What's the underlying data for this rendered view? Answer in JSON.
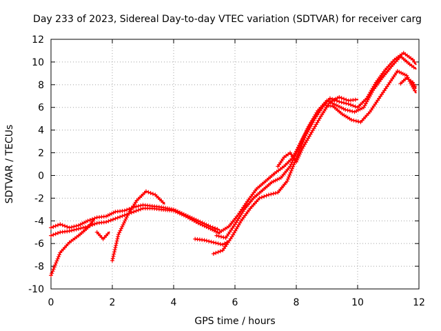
{
  "chart_data": {
    "type": "scatter",
    "title": "Day 233 of 2023, Sidereal Day-to-day VTEC variation (SDTVAR) for receiver carg",
    "xlabel": "GPS time / hours",
    "ylabel": "SDTVAR / TECUs",
    "xlim": [
      0,
      12
    ],
    "ylim": [
      -10,
      12
    ],
    "xticks": [
      "0",
      "2",
      "4",
      "6",
      "8",
      "10",
      "12"
    ],
    "yticks": [
      "-10",
      "-8",
      "-6",
      "-4",
      "-2",
      "0",
      "2",
      "4",
      "6",
      "8",
      "10",
      "12"
    ],
    "grid": true,
    "series": [
      {
        "x": [
          0.0,
          0.3,
          0.6,
          0.9,
          1.2,
          1.5,
          1.8,
          2.1,
          2.4,
          2.7,
          3.0,
          3.3,
          3.6,
          4.0,
          4.4,
          4.8,
          5.2,
          5.5
        ],
        "y": [
          -4.6,
          -4.3,
          -4.6,
          -4.4,
          -4.0,
          -3.7,
          -3.6,
          -3.2,
          -3.1,
          -2.8,
          -2.6,
          -2.7,
          -2.8,
          -3.0,
          -3.5,
          -4.0,
          -4.5,
          -4.8
        ]
      },
      {
        "x": [
          0.0,
          0.3,
          0.6,
          0.9,
          1.2,
          1.5,
          1.8,
          2.1,
          2.4,
          2.7,
          3.0,
          3.3,
          3.6,
          4.0,
          4.4,
          4.8,
          5.2,
          5.5
        ],
        "y": [
          -5.3,
          -5.0,
          -4.9,
          -4.7,
          -4.5,
          -4.2,
          -4.1,
          -3.8,
          -3.5,
          -3.2,
          -2.9,
          -2.9,
          -3.0,
          -3.1,
          -3.6,
          -4.2,
          -4.7,
          -5.1
        ]
      },
      {
        "x": [
          0.0,
          0.3,
          0.6,
          0.9,
          1.2,
          1.4
        ],
        "y": [
          -8.8,
          -6.8,
          -5.9,
          -5.3,
          -4.6,
          -3.9
        ]
      },
      {
        "x": [
          2.0,
          2.2,
          2.5,
          2.8,
          3.1,
          3.4,
          3.7
        ],
        "y": [
          -7.5,
          -5.2,
          -3.5,
          -2.2,
          -1.4,
          -1.7,
          -2.5
        ]
      },
      {
        "x": [
          1.5,
          1.7,
          1.9
        ],
        "y": [
          -5.0,
          -5.6,
          -5.0
        ]
      },
      {
        "x": [
          4.7,
          5.0,
          5.3,
          5.6,
          5.8
        ],
        "y": [
          -5.6,
          -5.7,
          -5.9,
          -6.1,
          -5.8
        ]
      },
      {
        "x": [
          5.3,
          5.6,
          5.9,
          6.2,
          6.5,
          6.8,
          7.1,
          7.4,
          7.7,
          8.0,
          8.3,
          8.6,
          8.9,
          9.2,
          9.5,
          9.8,
          10.1,
          10.4,
          10.7,
          11.0,
          11.3,
          11.6,
          11.9
        ],
        "y": [
          -6.9,
          -6.6,
          -5.4,
          -4.0,
          -2.9,
          -2.0,
          -1.7,
          -1.5,
          -0.5,
          1.5,
          3.5,
          5.0,
          6.2,
          6.1,
          5.4,
          4.9,
          4.7,
          5.6,
          6.8,
          8.0,
          9.2,
          8.8,
          7.3
        ]
      },
      {
        "x": [
          5.4,
          5.7,
          6.0,
          6.3,
          6.6,
          6.9,
          7.2,
          7.5,
          7.8,
          8.1,
          8.4,
          8.7,
          9.0,
          9.3,
          9.6,
          9.9,
          10.2,
          10.5,
          10.8,
          11.1,
          11.4,
          11.7,
          11.9
        ],
        "y": [
          -5.3,
          -5.5,
          -4.3,
          -3.0,
          -2.0,
          -1.3,
          -0.6,
          -0.2,
          0.8,
          2.6,
          4.3,
          5.7,
          6.6,
          6.2,
          5.8,
          5.6,
          6.0,
          7.5,
          8.6,
          9.6,
          10.5,
          9.8,
          9.4
        ]
      },
      {
        "x": [
          5.5,
          5.8,
          6.1,
          6.4,
          6.7,
          7.0,
          7.3,
          7.6,
          7.9,
          8.2,
          8.5,
          8.8,
          9.1,
          9.4,
          9.7,
          10.0,
          10.3,
          10.6,
          10.9,
          11.2,
          11.5,
          11.8,
          11.9
        ],
        "y": [
          -5.0,
          -4.5,
          -3.5,
          -2.3,
          -1.2,
          -0.5,
          0.2,
          0.8,
          1.6,
          3.2,
          4.7,
          5.9,
          6.8,
          6.5,
          6.3,
          6.0,
          6.8,
          8.2,
          9.3,
          10.2,
          10.8,
          10.2,
          9.8
        ]
      },
      {
        "x": [
          7.4,
          7.6,
          7.8,
          8.0,
          8.2,
          8.5,
          8.8,
          9.1,
          9.4,
          9.7,
          10.0
        ],
        "y": [
          0.8,
          1.6,
          2.0,
          1.2,
          2.4,
          3.8,
          5.2,
          6.5,
          6.9,
          6.6,
          6.7
        ]
      },
      {
        "x": [
          11.4,
          11.6,
          11.8,
          11.9
        ],
        "y": [
          8.1,
          8.6,
          8.2,
          7.7
        ]
      }
    ]
  }
}
